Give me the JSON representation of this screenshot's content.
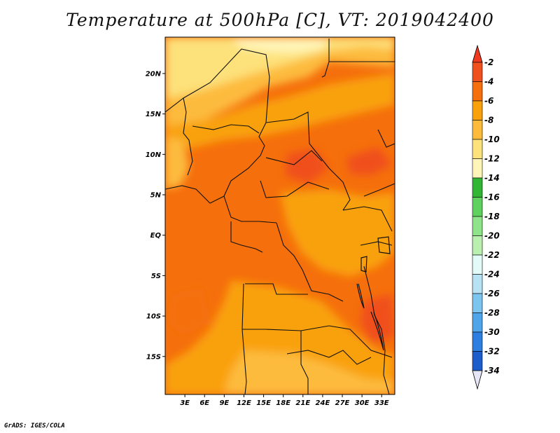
{
  "title": "Temperature at 500hPa [C], VT: 2019042400",
  "credit": "GrADS: IGES/COLA",
  "map": {
    "lat_labels": [
      "20N",
      "15N",
      "10N",
      "5N",
      "EQ",
      "5S",
      "10S",
      "15S"
    ],
    "lat_values": [
      20,
      15,
      10,
      5,
      0,
      -5,
      -10,
      -15
    ],
    "lon_labels": [
      "3E",
      "6E",
      "9E",
      "12E",
      "15E",
      "18E",
      "21E",
      "24E",
      "27E",
      "30E",
      "33E"
    ],
    "lon_values": [
      3,
      6,
      9,
      12,
      15,
      18,
      21,
      24,
      27,
      30,
      33
    ],
    "lat_range": [
      -19.7,
      24.5
    ],
    "lon_range": [
      0,
      35
    ],
    "field": "Temperature at 500hPa (C)",
    "valid_time": "2019042400",
    "notable_regions": [
      {
        "name": "warm core near 22E 8N",
        "value_range": "-4 to -2"
      },
      {
        "name": "Sahara north",
        "value_range": "-10 to -8"
      },
      {
        "name": "southern Africa",
        "value_range": "-8 to -6"
      }
    ]
  },
  "colorbar": {
    "labels": [
      "-2",
      "-4",
      "-6",
      "-8",
      "-10",
      "-12",
      "-14",
      "-16",
      "-18",
      "-20",
      "-22",
      "-24",
      "-26",
      "-28",
      "-30",
      "-32",
      "-34"
    ],
    "colors": [
      "#f0501e",
      "#f56f0c",
      "#f9a10a",
      "#fdbb3c",
      "#fde17a",
      "#fff5b8",
      "#31b534",
      "#5fd15e",
      "#8fe38a",
      "#b9f0b0",
      "#e2fbf8",
      "#b6e2f4",
      "#7cc5ef",
      "#4ea5ea",
      "#2c7fe0",
      "#1c5ccb",
      "#123fb3",
      "#0c1e73"
    ],
    "top_color": "#ef3a1f",
    "bottom_color": "#e6e6f7"
  }
}
